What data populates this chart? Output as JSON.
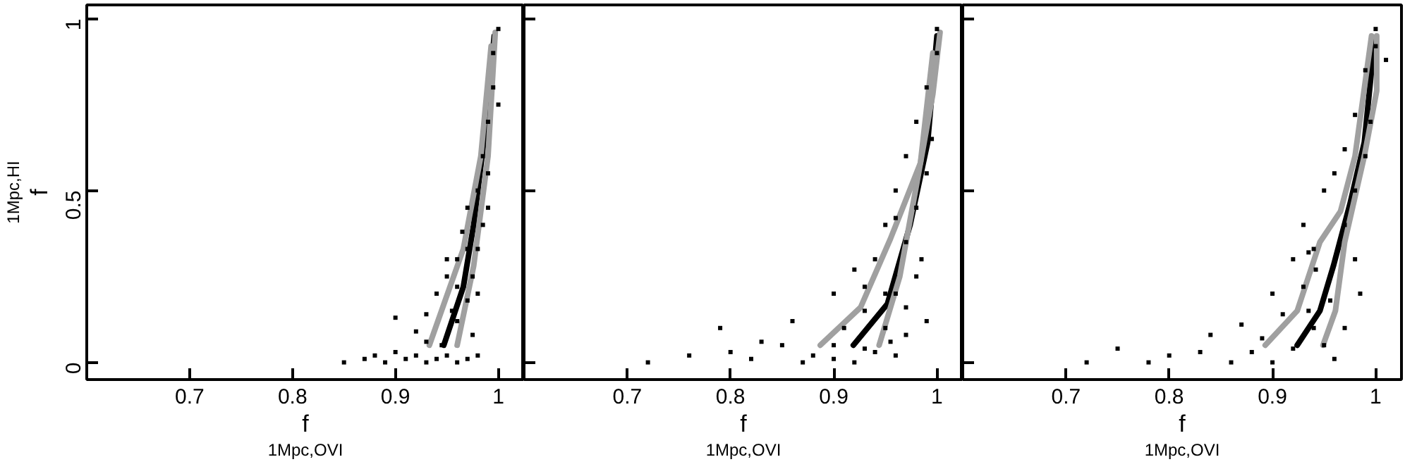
{
  "chart_data": [
    {
      "type": "scatter",
      "xlabel": "f$_{1Mpc,OVI}$",
      "ylabel": "f$_{1Mpc,HI}$",
      "xlim": [
        0.6,
        1.025
      ],
      "ylim": [
        -0.05,
        1.04
      ],
      "xticks": [
        0.7,
        0.8,
        0.9,
        1
      ],
      "yticks": [
        0,
        0.5,
        1
      ],
      "grid": false,
      "series": [
        {
          "marker": "square",
          "color": "#000000",
          "x": [
            0.85,
            0.87,
            0.88,
            0.89,
            0.9,
            0.91,
            0.92,
            0.93,
            0.94,
            0.95,
            0.96,
            0.97,
            0.98,
            0.9,
            0.92,
            0.93,
            0.94,
            0.95,
            0.96,
            0.96,
            0.97,
            0.965,
            0.975,
            0.97,
            0.98,
            0.98,
            0.985,
            0.985,
            0.99,
            0.99,
            0.995,
            0.995,
            1.0,
            0.98,
            0.975,
            0.945,
            0.955,
            0.99,
            1.0,
            0.96,
            0.97,
            0.95,
            0.93
          ],
          "values": [
            0.0,
            0.01,
            0.02,
            0.0,
            0.03,
            0.01,
            0.02,
            0.0,
            0.01,
            0.02,
            0.0,
            0.01,
            0.02,
            0.13,
            0.09,
            0.14,
            0.2,
            0.25,
            0.12,
            0.3,
            0.18,
            0.38,
            0.25,
            0.45,
            0.33,
            0.5,
            0.4,
            0.6,
            0.7,
            0.55,
            0.8,
            0.9,
            0.97,
            0.2,
            0.08,
            0.05,
            0.15,
            0.45,
            0.75,
            0.22,
            0.33,
            0.3,
            0.06
          ]
        },
        {
          "type": "line",
          "color": "#000000",
          "x": [
            0.947,
            0.966,
            0.976,
            0.987,
            0.996
          ],
          "values": [
            0.05,
            0.22,
            0.4,
            0.67,
            0.95
          ]
        },
        {
          "type": "line",
          "color": "#a0a0a0",
          "x": [
            0.933,
            0.966,
            0.983,
            0.993
          ],
          "values": [
            0.05,
            0.33,
            0.6,
            0.92
          ]
        },
        {
          "type": "line",
          "color": "#a0a0a0",
          "x": [
            0.96,
            0.976,
            0.99,
            0.997
          ],
          "values": [
            0.05,
            0.28,
            0.6,
            0.96
          ]
        }
      ]
    },
    {
      "type": "scatter",
      "xlabel": "f$_{1Mpc,OVI}$",
      "xlim": [
        0.6,
        1.025
      ],
      "ylim": [
        -0.05,
        1.04
      ],
      "xticks": [
        0.7,
        0.8,
        0.9,
        1
      ],
      "yticks": [
        0,
        0.5,
        1
      ],
      "tick_labels": "x",
      "grid": false,
      "series": [
        {
          "marker": "square",
          "color": "#000000",
          "x": [
            0.72,
            0.76,
            0.79,
            0.8,
            0.82,
            0.83,
            0.85,
            0.86,
            0.87,
            0.88,
            0.9,
            0.9,
            0.91,
            0.92,
            0.92,
            0.93,
            0.94,
            0.94,
            0.95,
            0.95,
            0.96,
            0.96,
            0.96,
            0.97,
            0.97,
            0.97,
            0.98,
            0.98,
            0.98,
            0.99,
            0.99,
            0.99,
            1.0,
            1.0,
            0.995,
            0.97,
            0.985,
            0.955,
            0.93,
            0.96,
            0.93,
            0.9,
            0.95
          ],
          "values": [
            0.0,
            0.02,
            0.1,
            0.03,
            0.01,
            0.06,
            0.05,
            0.12,
            0.0,
            0.02,
            0.2,
            0.01,
            0.1,
            0.27,
            0.0,
            0.15,
            0.3,
            0.03,
            0.4,
            0.1,
            0.2,
            0.5,
            0.02,
            0.35,
            0.6,
            0.08,
            0.25,
            0.7,
            0.45,
            0.55,
            0.8,
            0.12,
            0.9,
            0.97,
            0.65,
            0.16,
            0.3,
            0.06,
            0.04,
            0.42,
            0.22,
            0.05,
            0.2
          ]
        },
        {
          "type": "line",
          "color": "#000000",
          "x": [
            0.919,
            0.952,
            0.974,
            0.991,
            1.0
          ],
          "values": [
            0.05,
            0.17,
            0.4,
            0.64,
            0.95
          ]
        },
        {
          "type": "line",
          "color": "#a0a0a0",
          "x": [
            0.887,
            0.926,
            0.955,
            0.984,
            0.996
          ],
          "values": [
            0.05,
            0.16,
            0.36,
            0.58,
            0.9
          ]
        },
        {
          "type": "line",
          "color": "#a0a0a0",
          "x": [
            0.944,
            0.964,
            0.981,
            0.996,
            1.003
          ],
          "values": [
            0.05,
            0.25,
            0.53,
            0.78,
            0.96
          ]
        }
      ]
    },
    {
      "type": "scatter",
      "xlabel": "f$_{1Mpc,OVI}$",
      "xlim": [
        0.6,
        1.025
      ],
      "ylim": [
        -0.05,
        1.04
      ],
      "xticks": [
        0.7,
        0.8,
        0.9,
        1
      ],
      "yticks": [
        0,
        0.5,
        1
      ],
      "tick_labels": "x",
      "grid": false,
      "series": [
        {
          "marker": "square",
          "color": "#000000",
          "x": [
            0.75,
            0.72,
            0.78,
            0.8,
            0.83,
            0.84,
            0.86,
            0.87,
            0.88,
            0.89,
            0.9,
            0.9,
            0.91,
            0.92,
            0.92,
            0.93,
            0.93,
            0.94,
            0.94,
            0.95,
            0.956,
            0.942,
            0.96,
            0.96,
            0.97,
            0.97,
            0.97,
            0.98,
            0.98,
            0.98,
            0.99,
            0.99,
            1.0,
            1.0,
            0.995,
            0.985,
            0.95,
            0.935,
            0.935,
            1.01
          ],
          "values": [
            0.04,
            0.0,
            0.0,
            0.02,
            0.03,
            0.08,
            0.0,
            0.11,
            0.03,
            0.07,
            0.2,
            0.0,
            0.14,
            0.3,
            0.04,
            0.22,
            0.4,
            0.1,
            0.33,
            0.5,
            0.18,
            0.27,
            0.55,
            0.01,
            0.4,
            0.62,
            0.1,
            0.5,
            0.72,
            0.3,
            0.6,
            0.85,
            0.92,
            0.97,
            0.7,
            0.2,
            0.05,
            0.15,
            0.32,
            0.88
          ]
        },
        {
          "type": "line",
          "color": "#000000",
          "x": [
            0.924,
            0.946,
            0.959,
            0.975,
            0.989,
            0.999
          ],
          "values": [
            0.05,
            0.15,
            0.28,
            0.46,
            0.64,
            0.94
          ]
        },
        {
          "type": "line",
          "color": "#a0a0a0",
          "x": [
            0.893,
            0.924,
            0.946,
            0.966,
            0.98,
            0.996
          ],
          "values": [
            0.05,
            0.15,
            0.35,
            0.44,
            0.6,
            0.95
          ]
        },
        {
          "type": "line",
          "color": "#a0a0a0",
          "x": [
            0.949,
            0.961,
            0.97,
            0.989,
            1.001,
            1.001
          ],
          "values": [
            0.05,
            0.15,
            0.35,
            0.6,
            0.79,
            0.95
          ]
        }
      ]
    }
  ]
}
